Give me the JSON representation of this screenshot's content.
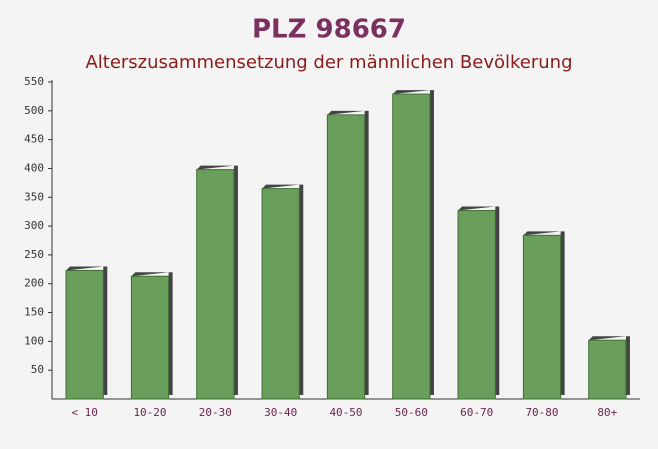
{
  "chart_data": {
    "type": "bar",
    "title": "PLZ 98667",
    "subtitle": "Alterszusammensetzung der männlichen Bevölkerung",
    "categories": [
      "< 10",
      "10-20",
      "20-30",
      "30-40",
      "40-50",
      "50-60",
      "60-70",
      "70-80",
      "80+"
    ],
    "values": [
      223,
      213,
      398,
      365,
      493,
      529,
      327,
      284,
      102
    ],
    "color": "#6a9f5b",
    "ylim": [
      0,
      550
    ],
    "yticks": [
      50,
      100,
      150,
      200,
      250,
      300,
      350,
      400,
      450,
      500,
      550
    ],
    "grid": false
  }
}
